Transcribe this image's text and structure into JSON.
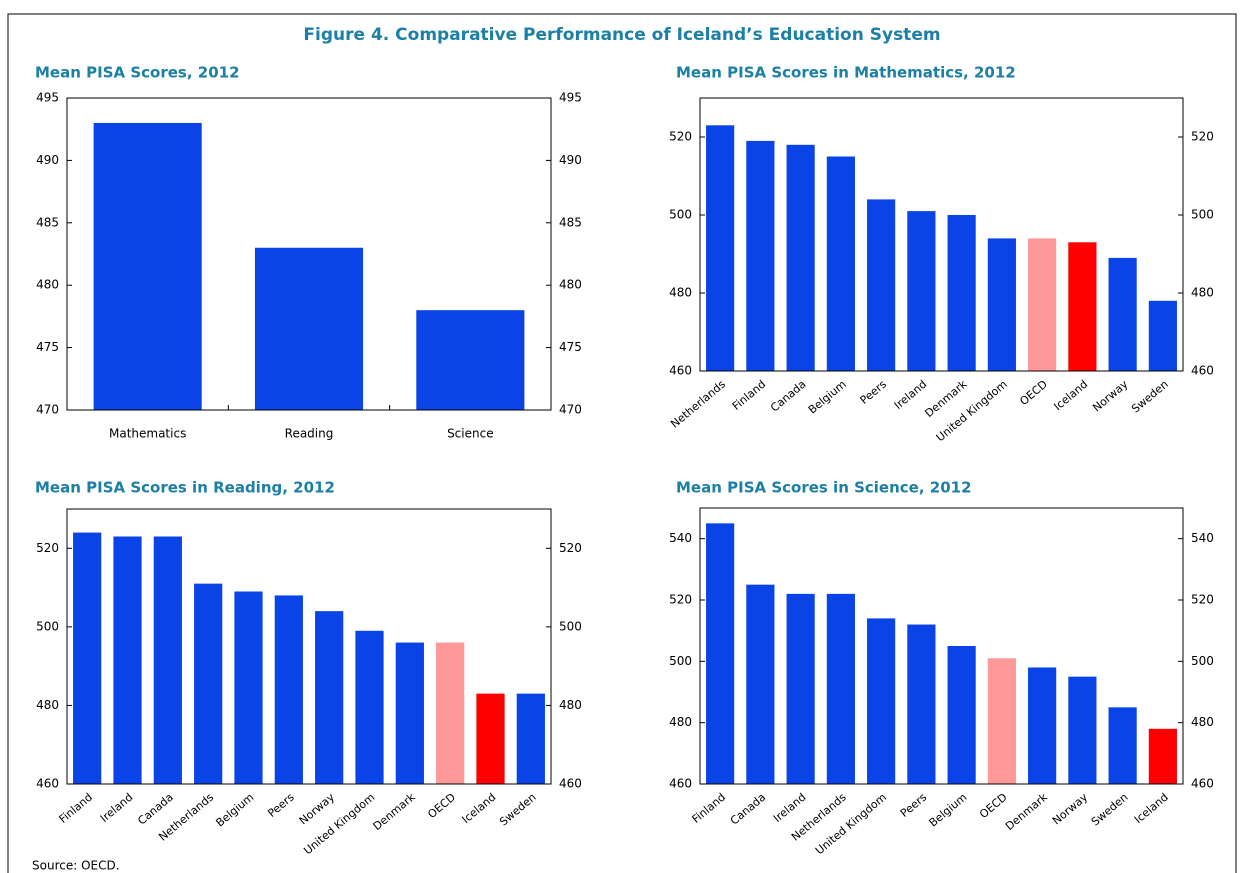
{
  "title": "Figure 4. Comparative Performance of Iceland’s Education System",
  "source": "Source: OECD.",
  "chart_data": [
    {
      "type": "bar",
      "title": "Mean PISA Scores, 2012",
      "categories": [
        "Mathematics",
        "Reading",
        "Science"
      ],
      "values": [
        493,
        483,
        478
      ],
      "colors": [
        "#0a44e6",
        "#0a44e6",
        "#0a44e6"
      ],
      "ylim": [
        470,
        495
      ],
      "yticks": [
        470,
        475,
        480,
        485,
        490,
        495
      ]
    },
    {
      "type": "bar",
      "title": "Mean PISA Scores in Mathematics, 2012",
      "categories": [
        "Netherlands",
        "Finland",
        "Canada",
        "Belgium",
        "Peers",
        "Ireland",
        "Denmark",
        "United Kingdom",
        "OECD",
        "Iceland",
        "Norway",
        "Sweden"
      ],
      "values": [
        523,
        519,
        518,
        515,
        504,
        501,
        500,
        494,
        494,
        493,
        489,
        478
      ],
      "colors": [
        "#0a44e6",
        "#0a44e6",
        "#0a44e6",
        "#0a44e6",
        "#0a44e6",
        "#0a44e6",
        "#0a44e6",
        "#0a44e6",
        "#ff9999",
        "#ff0000",
        "#0a44e6",
        "#0a44e6"
      ],
      "ylim": [
        460,
        530
      ],
      "yticks": [
        460,
        480,
        500,
        520
      ]
    },
    {
      "type": "bar",
      "title": "Mean PISA Scores in Reading, 2012",
      "categories": [
        "Finland",
        "Ireland",
        "Canada",
        "Netherlands",
        "Belgium",
        "Peers",
        "Norway",
        "United Kingdom",
        "Denmark",
        "OECD",
        "Iceland",
        "Sweden"
      ],
      "values": [
        524,
        523,
        523,
        511,
        509,
        508,
        504,
        499,
        496,
        496,
        483,
        483
      ],
      "colors": [
        "#0a44e6",
        "#0a44e6",
        "#0a44e6",
        "#0a44e6",
        "#0a44e6",
        "#0a44e6",
        "#0a44e6",
        "#0a44e6",
        "#0a44e6",
        "#ff9999",
        "#ff0000",
        "#0a44e6"
      ],
      "ylim": [
        460,
        530
      ],
      "yticks": [
        460,
        480,
        500,
        520
      ]
    },
    {
      "type": "bar",
      "title": "Mean PISA Scores in Science, 2012",
      "categories": [
        "Finland",
        "Canada",
        "Ireland",
        "Netherlands",
        "United Kingdom",
        "Peers",
        "Belgium",
        "OECD",
        "Denmark",
        "Norway",
        "Sweden",
        "Iceland"
      ],
      "values": [
        545,
        525,
        522,
        522,
        514,
        512,
        505,
        501,
        498,
        495,
        485,
        478
      ],
      "colors": [
        "#0a44e6",
        "#0a44e6",
        "#0a44e6",
        "#0a44e6",
        "#0a44e6",
        "#0a44e6",
        "#0a44e6",
        "#ff9999",
        "#0a44e6",
        "#0a44e6",
        "#0a44e6",
        "#ff0000"
      ],
      "ylim": [
        460,
        550
      ],
      "yticks": [
        460,
        480,
        500,
        520,
        540
      ]
    }
  ]
}
